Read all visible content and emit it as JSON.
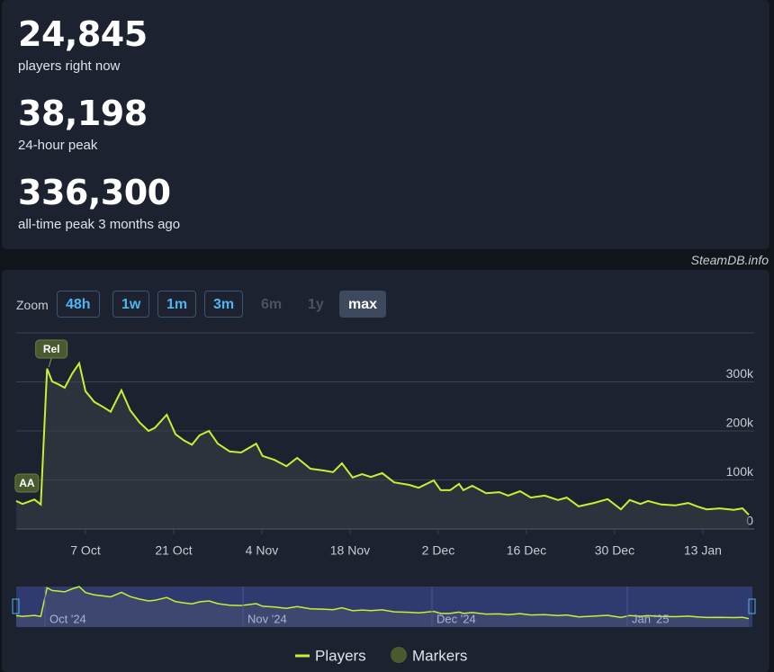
{
  "stats": [
    {
      "value": "24,845",
      "label": "players right now"
    },
    {
      "value": "38,198",
      "label": "24-hour peak"
    },
    {
      "value": "336,300",
      "label": "all-time peak 3 months ago"
    }
  ],
  "credit": "SteamDB.info",
  "zoom": {
    "label": "Zoom",
    "buttons": [
      "48h",
      "1w",
      "1m",
      "3m",
      "6m",
      "1y",
      "max"
    ],
    "disabled": [
      "6m",
      "1y"
    ],
    "selected": "max"
  },
  "chart_data": {
    "type": "line",
    "x": [
      0,
      1,
      2.9,
      3.9,
      4.9,
      5.7,
      6.7,
      7.7,
      8.9,
      10,
      11,
      12.4,
      13.9,
      15,
      16.7,
      18.1,
      19.6,
      21,
      22,
      23.9,
      25.3,
      26.7,
      27.9,
      29.1,
      30.6,
      32,
      33.9,
      35.7,
      38.1,
      39.1,
      41,
      42.9,
      44.6,
      46.7,
      48.9,
      50.3,
      51.7,
      53.4,
      54.9,
      56.3,
      58.1,
      60,
      62.4,
      63.9,
      66.3,
      67.4,
      68.9,
      70.3,
      71,
      72.4,
      74.6,
      76.7,
      78.1,
      80,
      81.7,
      83.9,
      86,
      87.4,
      89.3,
      91.7,
      93.9,
      96,
      97.4,
      99.1,
      100.3,
      102.4,
      104.6,
      106.7,
      108.1,
      109.6,
      111.7,
      113.9,
      115.3,
      116.3
    ],
    "series": [
      {
        "name": "Players",
        "color": "#c8f032",
        "values": [
          57000,
          51000,
          60000,
          50000,
          327000,
          301000,
          295000,
          288000,
          317000,
          338000,
          281000,
          259000,
          248000,
          239000,
          283000,
          242000,
          217000,
          200000,
          206000,
          233000,
          193000,
          180000,
          172000,
          191000,
          200000,
          174000,
          158000,
          156000,
          174000,
          149000,
          141000,
          128000,
          145000,
          123000,
          119000,
          116000,
          134000,
          105000,
          112000,
          106000,
          114000,
          95000,
          90000,
          84000,
          99000,
          79000,
          79000,
          92000,
          79000,
          88000,
          73000,
          75000,
          68000,
          77000,
          64000,
          68000,
          59000,
          64000,
          46000,
          53000,
          61000,
          40000,
          59000,
          51000,
          57000,
          50000,
          48000,
          53000,
          46000,
          40000,
          42000,
          39000,
          42000,
          29000
        ]
      }
    ],
    "xlim": [
      0,
      116.3
    ],
    "xticks": [
      {
        "value": 11,
        "label": "7 Oct"
      },
      {
        "value": 25,
        "label": "21 Oct"
      },
      {
        "value": 39,
        "label": "4 Nov"
      },
      {
        "value": 53,
        "label": "18 Nov"
      },
      {
        "value": 67,
        "label": "2 Dec"
      },
      {
        "value": 81,
        "label": "16 Dec"
      },
      {
        "value": 95,
        "label": "30 Dec"
      },
      {
        "value": 109,
        "label": "13 Jan"
      }
    ],
    "ylim": [
      0,
      400000
    ],
    "yticks": [
      0,
      {
        "value": 100000,
        "label": "100k"
      },
      {
        "value": 200000,
        "label": "200k"
      },
      {
        "value": 300000,
        "label": "300k"
      }
    ],
    "grid": true,
    "annotations": [
      {
        "text": "Rel",
        "x": 5.6
      },
      {
        "text": "AA",
        "x": 1.7
      }
    ],
    "markers_legend": {
      "name": "Markers",
      "color": "#4a5a2f"
    },
    "navigator": {
      "labels": [
        "Oct '24",
        "Nov '24",
        "Dec '24",
        "Jan '25"
      ]
    }
  }
}
